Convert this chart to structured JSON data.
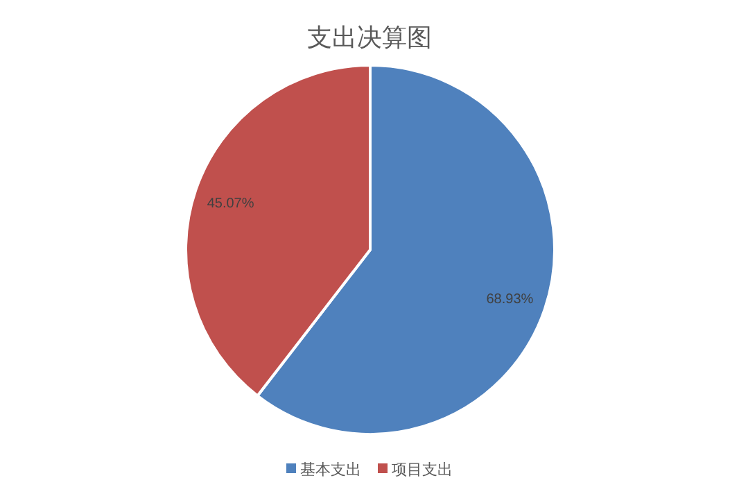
{
  "chart_data": {
    "type": "pie",
    "title": "支出决算图",
    "categories": [
      "基本支出",
      "项目支出"
    ],
    "values": [
      68.93,
      45.07
    ],
    "colors": [
      "#4f81bd",
      "#c0504d"
    ],
    "value_labels": [
      "68.93%",
      "45.07%"
    ],
    "legend": "bottom"
  }
}
